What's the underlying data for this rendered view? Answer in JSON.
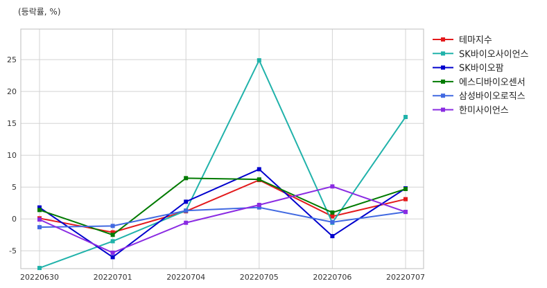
{
  "chart_data": {
    "type": "line",
    "unit_label": "(등락률, %)",
    "categories": [
      "20220630",
      "20220701",
      "20220704",
      "20220705",
      "20220706",
      "20220707"
    ],
    "ylim": [
      -7.8,
      29.8
    ],
    "yticks": [
      -5,
      0,
      5,
      10,
      15,
      20,
      25
    ],
    "grid": true,
    "legend_position": "right",
    "series": [
      {
        "name": "테마지수",
        "color": "#e31a1c",
        "values": [
          0.1,
          -2.1,
          1.2,
          6.1,
          0.4,
          3.1
        ]
      },
      {
        "name": "SK바이오사이언스",
        "color": "#20b2aa",
        "values": [
          -7.7,
          -3.5,
          1.3,
          24.9,
          -0.6,
          16.0
        ]
      },
      {
        "name": "SK바이오팜",
        "color": "#0000cd",
        "values": [
          1.8,
          -6.0,
          2.7,
          7.8,
          -2.7,
          4.8
        ]
      },
      {
        "name": "에스디바이오센서",
        "color": "#007a00",
        "values": [
          1.4,
          -2.5,
          6.4,
          6.2,
          1.0,
          4.7
        ]
      },
      {
        "name": "삼성바이오로직스",
        "color": "#4169e1",
        "values": [
          -1.3,
          -1.1,
          1.3,
          1.8,
          -0.5,
          1.1
        ]
      },
      {
        "name": "한미사이언스",
        "color": "#8a2be2",
        "values": [
          -0.1,
          -5.3,
          -0.6,
          2.2,
          5.1,
          1.1
        ]
      }
    ]
  }
}
